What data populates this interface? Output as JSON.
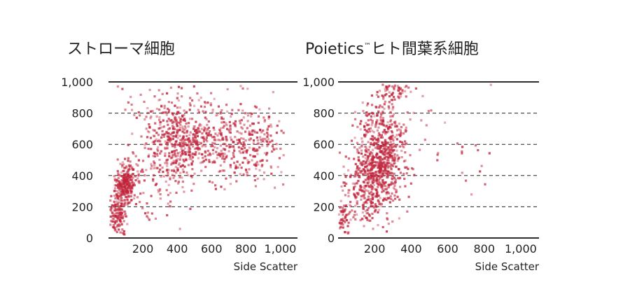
{
  "chart_data": [
    {
      "type": "scatter",
      "title": "ストローマ細胞",
      "xlabel": "Side Scatter",
      "ylabel": "",
      "xlim": [
        0,
        1100
      ],
      "ylim": [
        0,
        1000
      ],
      "x_ticks": [
        "200",
        "400",
        "600",
        "800",
        "1,000"
      ],
      "y_ticks": [
        "0",
        "200",
        "400",
        "600",
        "800",
        "1,000"
      ],
      "grid": "dashed horizontal",
      "point_color": "#c0233a",
      "clusters": [
        {
          "cx": 100,
          "cy": 350,
          "sx": 30,
          "sy": 60,
          "n": 260
        },
        {
          "cx": 50,
          "cy": 150,
          "sx": 25,
          "sy": 80,
          "n": 150
        },
        {
          "cx": 400,
          "cy": 640,
          "sx": 90,
          "sy": 120,
          "n": 320
        },
        {
          "cx": 600,
          "cy": 600,
          "sx": 150,
          "sy": 110,
          "n": 300
        },
        {
          "cx": 850,
          "cy": 600,
          "sx": 100,
          "sy": 120,
          "n": 160
        },
        {
          "cx": 300,
          "cy": 420,
          "sx": 110,
          "sy": 140,
          "n": 120
        },
        {
          "cx": 500,
          "cy": 850,
          "sx": 250,
          "sy": 90,
          "n": 60
        }
      ]
    },
    {
      "type": "scatter",
      "title": "Poietics",
      "title_mark": "™",
      "title_suffix": "ヒト間葉系細胞",
      "xlabel": "Side Scatter",
      "ylabel": "",
      "xlim": [
        0,
        1100
      ],
      "ylim": [
        0,
        1000
      ],
      "x_ticks": [
        "200",
        "400",
        "600",
        "800",
        "1,000"
      ],
      "y_ticks": [
        "0",
        "200",
        "400",
        "600",
        "800",
        "1,000"
      ],
      "grid": "dashed horizontal",
      "point_color": "#c0233a",
      "clusters": [
        {
          "cx": 220,
          "cy": 450,
          "sx": 70,
          "sy": 110,
          "n": 520
        },
        {
          "cx": 250,
          "cy": 680,
          "sx": 70,
          "sy": 110,
          "n": 230
        },
        {
          "cx": 150,
          "cy": 250,
          "sx": 80,
          "sy": 90,
          "n": 160
        },
        {
          "cx": 30,
          "cy": 120,
          "sx": 25,
          "sy": 60,
          "n": 50
        },
        {
          "cx": 320,
          "cy": 950,
          "sx": 50,
          "sy": 30,
          "n": 60
        },
        {
          "cx": 600,
          "cy": 600,
          "sx": 180,
          "sy": 140,
          "n": 30
        }
      ]
    }
  ]
}
